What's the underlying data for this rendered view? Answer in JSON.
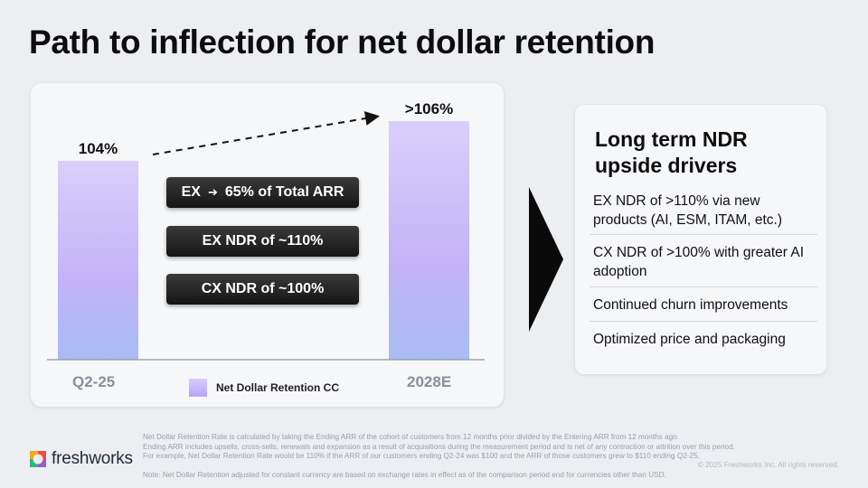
{
  "title": "Path to inflection for net dollar retention",
  "chart_data": {
    "type": "bar",
    "categories": [
      "Q2-25",
      "2028E"
    ],
    "values": [
      104,
      106
    ],
    "data_labels": [
      "104%",
      ">106%"
    ],
    "legend": "Net Dollar Retention CC",
    "ylim": [
      94,
      107
    ],
    "annotations": [
      "EX",
      "65% of Total ARR",
      "EX NDR of ~110%",
      "CX NDR of ~100%"
    ],
    "trend_arrow": "dashed arrow from Q2-25 to 2028E"
  },
  "drivers": {
    "title": "Long term NDR upside drivers",
    "items": [
      "EX NDR of >110% via new products (AI, ESM, ITAM, etc.)",
      "CX NDR of >100% with greater AI adoption",
      "Continued churn improvements",
      "Optimized price and packaging"
    ]
  },
  "footnotes": [
    "Net Dollar Retention Rate is calculated by taking the Ending ARR of the cohort of customers from 12 months prior divided by the Entering ARR from 12 months ago.",
    "Ending ARR includes upsells, cross-sells, renewals and expansion as a result of acquisitions during the measurement period and is net of any contraction or attrition over this period.",
    "For example, Net Dollar Retention Rate would be 110% if the ARR of our customers ending Q2-24 was $100 and the ARR of those customers grew to $110 ending Q2-25.",
    "Note: Net Dollar Retention adjusted for constant currency are based on exchange rates in effect as of the comparison period end for currencies other than USD."
  ],
  "copyright": "© 2025 Freshworks Inc. All rights reserved.",
  "logo_text": "freshworks",
  "colors": {
    "bar_top": "#d9cffb",
    "bar_mid": "#c3b3f6",
    "bar_bottom": "#a8bcf4",
    "pill": "#1c1c1c",
    "accent_dark": "#0a0a0a"
  }
}
